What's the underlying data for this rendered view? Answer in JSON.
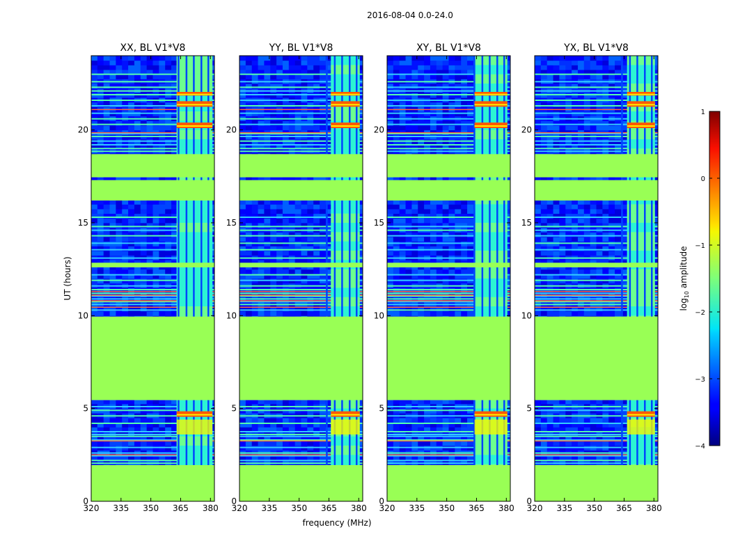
{
  "suptitle": "2016-08-04 0.0-24.0",
  "chart_data": {
    "type": "heatmap",
    "xlabel": "frequency (MHz)",
    "ylabel": "UT (hours)",
    "xlim": [
      320,
      382
    ],
    "ylim": [
      0,
      24
    ],
    "xticks": [
      320,
      335,
      350,
      365,
      380
    ],
    "yticks": [
      0,
      5,
      10,
      15,
      20
    ],
    "panels": [
      {
        "title": "XX, BL V1*V8"
      },
      {
        "title": "YY, BL V1*V8"
      },
      {
        "title": "XY, BL V1*V8"
      },
      {
        "title": "YX, BL V1*V8"
      }
    ],
    "flagged_time_ranges": [
      [
        0,
        1.95
      ],
      [
        5.45,
        9.95
      ],
      [
        12.6,
        12.85
      ],
      [
        16.2,
        17.3
      ],
      [
        17.45,
        18.7
      ]
    ],
    "rfi_band_mhz": [
      361,
      381
    ],
    "colorbar": {
      "label_prefix": "log",
      "label_subscript": "10",
      "label_suffix": " amplitude",
      "min": -4,
      "max": 1,
      "ticks": [
        "1",
        "0",
        "−1",
        "−2",
        "−3",
        "−4"
      ],
      "colormap": "jet"
    }
  }
}
